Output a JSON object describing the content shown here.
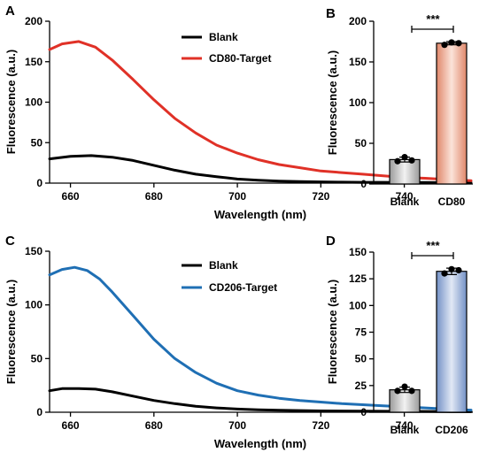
{
  "chart_data": [
    {
      "panel": "A",
      "type": "line",
      "xlabel": "Wavelength (nm)",
      "ylabel": "Fluorescence (a.u.)",
      "xlim": [
        655,
        756
      ],
      "ylim": [
        0,
        200
      ],
      "xticks": [
        660,
        680,
        700,
        720,
        740
      ],
      "yticks": [
        0,
        50,
        100,
        150,
        200
      ],
      "legend_position": "top-right",
      "series": [
        {
          "name": "Blank",
          "color": "#000000",
          "x": [
            655,
            660,
            665,
            670,
            675,
            680,
            685,
            690,
            695,
            700,
            705,
            710,
            715,
            720,
            725,
            730,
            735,
            740,
            745,
            750,
            756
          ],
          "y": [
            30,
            33,
            34,
            32,
            28,
            22,
            16,
            11,
            8,
            5,
            3.5,
            2.5,
            2,
            1.5,
            1.2,
            1,
            1,
            0.8,
            0.8,
            0.6,
            0.5
          ]
        },
        {
          "name": "CD80-Target",
          "color": "#e03127",
          "x": [
            655,
            658,
            662,
            666,
            670,
            675,
            680,
            685,
            690,
            695,
            700,
            705,
            710,
            715,
            720,
            725,
            730,
            735,
            740,
            745,
            750,
            756
          ],
          "y": [
            165,
            172,
            175,
            168,
            152,
            128,
            103,
            80,
            62,
            47,
            37,
            29,
            23,
            19,
            15,
            13,
            11,
            9,
            7,
            6,
            4.5,
            3
          ]
        }
      ]
    },
    {
      "panel": "B",
      "type": "bar",
      "categories": [
        "Blank",
        "CD80"
      ],
      "values": [
        30,
        173
      ],
      "points": [
        [
          28,
          33,
          29
        ],
        [
          171,
          174,
          173
        ]
      ],
      "errors": [
        3,
        2
      ],
      "colors": [
        "#b0b0b0",
        "#e6a085"
      ],
      "ylabel": "Fluorescence (a.u.)",
      "ylim": [
        0,
        200
      ],
      "yticks": [
        0,
        50,
        100,
        150,
        200
      ],
      "significance": "***"
    },
    {
      "panel": "C",
      "type": "line",
      "xlabel": "Wavelength (nm)",
      "ylabel": "Fluorescence (a.u.)",
      "xlim": [
        655,
        756
      ],
      "ylim": [
        0,
        150
      ],
      "xticks": [
        660,
        680,
        700,
        720,
        740
      ],
      "yticks": [
        0,
        50,
        100,
        150
      ],
      "legend_position": "top-right",
      "series": [
        {
          "name": "Blank",
          "color": "#000000",
          "x": [
            655,
            658,
            662,
            666,
            670,
            675,
            680,
            685,
            690,
            695,
            700,
            705,
            710,
            720,
            730,
            740,
            750,
            756
          ],
          "y": [
            20,
            22,
            22,
            21.5,
            19,
            15,
            11,
            8,
            5.5,
            4,
            3,
            2.3,
            1.8,
            1.2,
            1,
            0.8,
            0.6,
            0.5
          ]
        },
        {
          "name": "CD206-Target",
          "color": "#1f6fb4",
          "x": [
            655,
            658,
            661,
            664,
            667,
            670,
            675,
            680,
            685,
            690,
            695,
            700,
            705,
            710,
            715,
            720,
            725,
            730,
            735,
            740,
            745,
            750,
            756
          ],
          "y": [
            128,
            133,
            135,
            132,
            124,
            112,
            90,
            68,
            50,
            37,
            27,
            20,
            16,
            13,
            11,
            9.5,
            8,
            7,
            6,
            5,
            4,
            3,
            2
          ]
        }
      ]
    },
    {
      "panel": "D",
      "type": "bar",
      "categories": [
        "Blank",
        "CD206"
      ],
      "values": [
        21,
        132
      ],
      "points": [
        [
          20,
          24,
          20
        ],
        [
          130,
          134,
          133
        ]
      ],
      "errors": [
        2.5,
        3
      ],
      "colors": [
        "#b0b0b0",
        "#7f9acb"
      ],
      "ylabel": "Fluorescence (a.u.)",
      "ylim": [
        0,
        150
      ],
      "yticks": [
        0,
        25,
        50,
        75,
        100,
        125,
        150
      ],
      "significance": "***"
    }
  ]
}
